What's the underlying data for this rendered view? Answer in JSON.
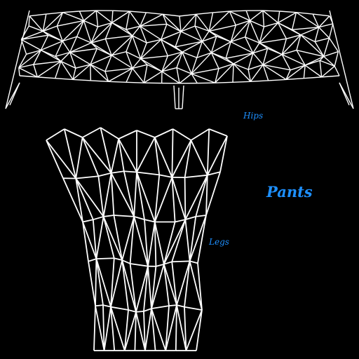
{
  "labels": {
    "hips": "Hips",
    "legs": "Legs",
    "pants": "Pants"
  },
  "colors": {
    "background": "#000000",
    "wireframe": "#ffffff",
    "label": "#1e90ff"
  }
}
